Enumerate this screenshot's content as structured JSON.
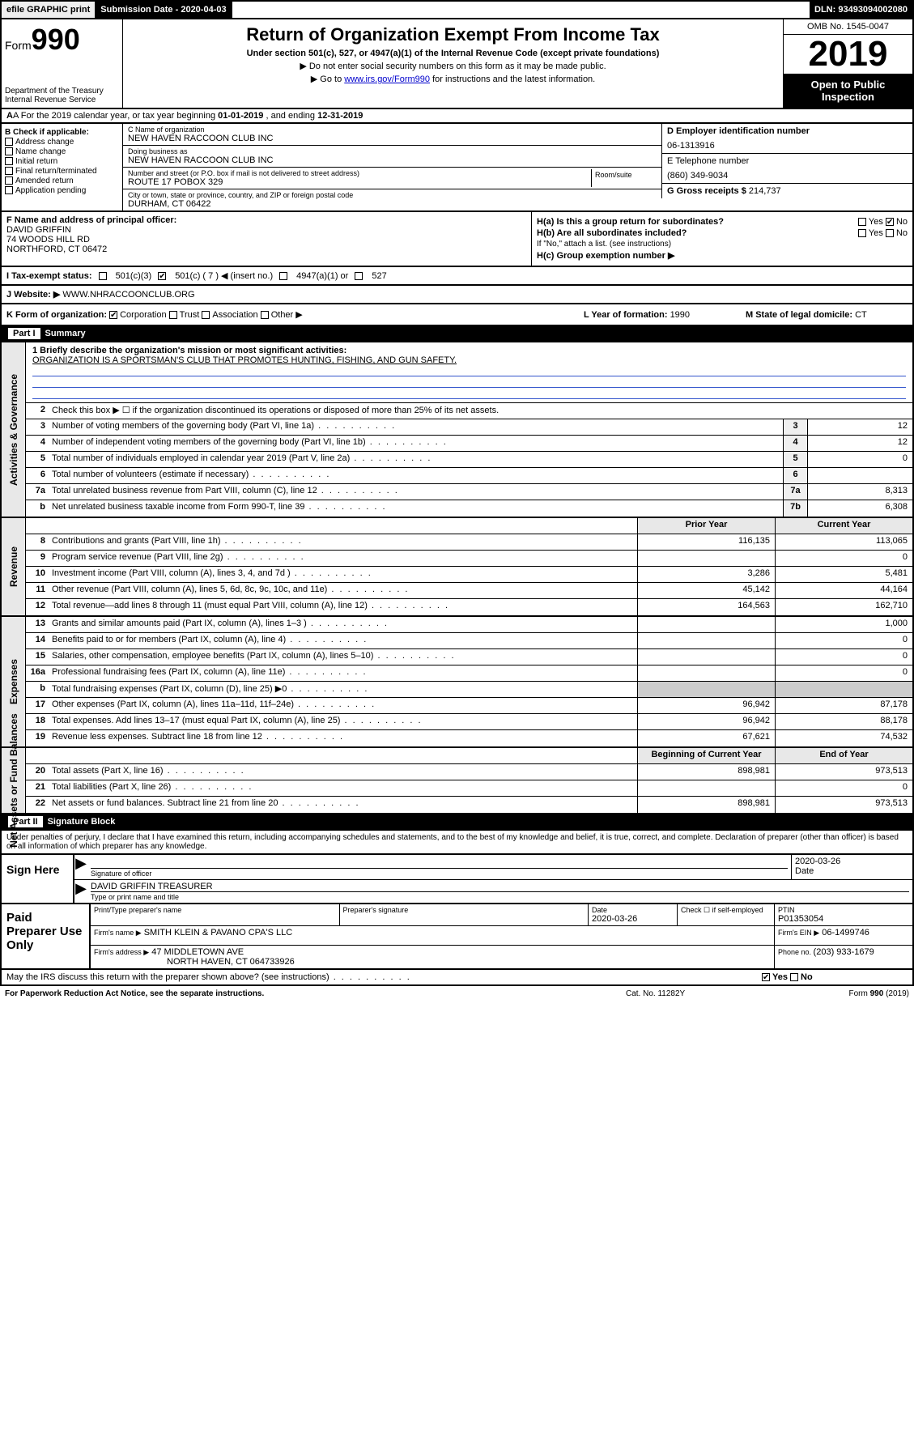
{
  "topbar": {
    "efile": "efile GRAPHIC print",
    "subdate_lbl": "Submission Date - ",
    "subdate": "2020-04-03",
    "dln": "DLN: 93493094002080"
  },
  "header": {
    "form_lbl": "Form",
    "form_num": "990",
    "dept": "Department of the Treasury\nInternal Revenue Service",
    "title": "Return of Organization Exempt From Income Tax",
    "subtitle": "Under section 501(c), 527, or 4947(a)(1) of the Internal Revenue Code (except private foundations)",
    "note1": "▶ Do not enter social security numbers on this form as it may be made public.",
    "note2_pre": "▶ Go to ",
    "note2_link": "www.irs.gov/Form990",
    "note2_post": " for instructions and the latest information.",
    "omb": "OMB No. 1545-0047",
    "year": "2019",
    "open": "Open to Public Inspection"
  },
  "rowA": {
    "text_pre": "A  For the 2019 calendar year, or tax year beginning ",
    "begin": "01-01-2019",
    "mid": "  , and ending ",
    "end": "12-31-2019"
  },
  "colB": {
    "hdr": "B Check if applicable:",
    "items": [
      "Address change",
      "Name change",
      "Initial return",
      "Final return/terminated",
      "Amended return",
      "Application pending"
    ]
  },
  "c": {
    "name_lbl": "C Name of organization",
    "name": "NEW HAVEN RACCOON CLUB INC",
    "dba_lbl": "Doing business as",
    "dba": "NEW HAVEN RACCOON CLUB INC",
    "street_lbl": "Number and street (or P.O. box if mail is not delivered to street address)",
    "street": "ROUTE 17 POBOX 329",
    "room_lbl": "Room/suite",
    "city_lbl": "City or town, state or province, country, and ZIP or foreign postal code",
    "city": "DURHAM, CT  06422"
  },
  "right": {
    "d_lbl": "D Employer identification number",
    "d": "06-1313916",
    "e_lbl": "E Telephone number",
    "e": "(860) 349-9034",
    "g_lbl": "G Gross receipts $ ",
    "g": "214,737"
  },
  "f": {
    "lbl": "F  Name and address of principal officer:",
    "name": "DAVID GRIFFIN",
    "addr1": "74 WOODS HILL RD",
    "addr2": "NORTHFORD, CT  06472"
  },
  "h": {
    "a_lbl": "H(a)  Is this a group return for subordinates?",
    "a_yes": "Yes",
    "a_no": "No",
    "b_lbl": "H(b)  Are all subordinates included?",
    "b_yes": "Yes",
    "b_no": "No",
    "note": "If \"No,\" attach a list. (see instructions)",
    "c_lbl": "H(c)  Group exemption number ▶"
  },
  "i": {
    "lbl": "I  Tax-exempt status:",
    "o501c3": "501(c)(3)",
    "o501c": "501(c) ( 7 ) ◀ (insert no.)",
    "o4947": "4947(a)(1) or",
    "o527": "527"
  },
  "j": {
    "lbl": "J  Website: ▶",
    "val": "WWW.NHRACCOONCLUB.ORG"
  },
  "k": {
    "lbl": "K Form of organization:",
    "corp": "Corporation",
    "trust": "Trust",
    "assoc": "Association",
    "other": "Other ▶"
  },
  "l": {
    "lbl": "L Year of formation: ",
    "val": "1990"
  },
  "m": {
    "lbl": "M State of legal domicile: ",
    "val": "CT"
  },
  "partI": {
    "num": "Part I",
    "title": "Summary"
  },
  "summary": {
    "tabs": [
      "Activities & Governance",
      "Revenue",
      "Expenses",
      "Net Assets or Fund Balances"
    ],
    "l1_lbl": "1  Briefly describe the organization's mission or most significant activities:",
    "l1_val": "ORGANIZATION IS A SPORTSMAN'S CLUB THAT PROMOTES HUNTING, FISHING, AND GUN SAFETY.",
    "l2": "Check this box ▶ ☐  if the organization discontinued its operations or disposed of more than 25% of its net assets.",
    "lines_top": [
      {
        "n": "3",
        "t": "Number of voting members of the governing body (Part VI, line 1a)",
        "b": "3",
        "v": "12"
      },
      {
        "n": "4",
        "t": "Number of independent voting members of the governing body (Part VI, line 1b)",
        "b": "4",
        "v": "12"
      },
      {
        "n": "5",
        "t": "Total number of individuals employed in calendar year 2019 (Part V, line 2a)",
        "b": "5",
        "v": "0"
      },
      {
        "n": "6",
        "t": "Total number of volunteers (estimate if necessary)",
        "b": "6",
        "v": ""
      },
      {
        "n": "7a",
        "t": "Total unrelated business revenue from Part VIII, column (C), line 12",
        "b": "7a",
        "v": "8,313"
      },
      {
        "n": "b",
        "t": "Net unrelated business taxable income from Form 990-T, line 39",
        "b": "7b",
        "v": "6,308"
      }
    ],
    "hdr_prior": "Prior Year",
    "hdr_curr": "Current Year",
    "rev": [
      {
        "n": "8",
        "t": "Contributions and grants (Part VIII, line 1h)",
        "p": "116,135",
        "c": "113,065"
      },
      {
        "n": "9",
        "t": "Program service revenue (Part VIII, line 2g)",
        "p": "",
        "c": "0"
      },
      {
        "n": "10",
        "t": "Investment income (Part VIII, column (A), lines 3, 4, and 7d )",
        "p": "3,286",
        "c": "5,481"
      },
      {
        "n": "11",
        "t": "Other revenue (Part VIII, column (A), lines 5, 6d, 8c, 9c, 10c, and 11e)",
        "p": "45,142",
        "c": "44,164"
      },
      {
        "n": "12",
        "t": "Total revenue—add lines 8 through 11 (must equal Part VIII, column (A), line 12)",
        "p": "164,563",
        "c": "162,710"
      }
    ],
    "exp": [
      {
        "n": "13",
        "t": "Grants and similar amounts paid (Part IX, column (A), lines 1–3 )",
        "p": "",
        "c": "1,000"
      },
      {
        "n": "14",
        "t": "Benefits paid to or for members (Part IX, column (A), line 4)",
        "p": "",
        "c": "0"
      },
      {
        "n": "15",
        "t": "Salaries, other compensation, employee benefits (Part IX, column (A), lines 5–10)",
        "p": "",
        "c": "0"
      },
      {
        "n": "16a",
        "t": "Professional fundraising fees (Part IX, column (A), line 11e)",
        "p": "",
        "c": "0"
      },
      {
        "n": "b",
        "t": "Total fundraising expenses (Part IX, column (D), line 25) ▶0",
        "p": "shade",
        "c": "shade"
      },
      {
        "n": "17",
        "t": "Other expenses (Part IX, column (A), lines 11a–11d, 11f–24e)",
        "p": "96,942",
        "c": "87,178"
      },
      {
        "n": "18",
        "t": "Total expenses. Add lines 13–17 (must equal Part IX, column (A), line 25)",
        "p": "96,942",
        "c": "88,178"
      },
      {
        "n": "19",
        "t": "Revenue less expenses. Subtract line 18 from line 12",
        "p": "67,621",
        "c": "74,532"
      }
    ],
    "hdr_beg": "Beginning of Current Year",
    "hdr_end": "End of Year",
    "net": [
      {
        "n": "20",
        "t": "Total assets (Part X, line 16)",
        "p": "898,981",
        "c": "973,513"
      },
      {
        "n": "21",
        "t": "Total liabilities (Part X, line 26)",
        "p": "",
        "c": "0"
      },
      {
        "n": "22",
        "t": "Net assets or fund balances. Subtract line 21 from line 20",
        "p": "898,981",
        "c": "973,513"
      }
    ]
  },
  "partII": {
    "num": "Part II",
    "title": "Signature Block"
  },
  "penalty": "Under penalties of perjury, I declare that I have examined this return, including accompanying schedules and statements, and to the best of my knowledge and belief, it is true, correct, and complete. Declaration of preparer (other than officer) is based on all information of which preparer has any knowledge.",
  "sign": {
    "lbl": "Sign Here",
    "sig_lbl": "Signature of officer",
    "date": "2020-03-26",
    "date_lbl": "Date",
    "name": "DAVID GRIFFIN TREASURER",
    "name_lbl": "Type or print name and title"
  },
  "paid": {
    "lbl": "Paid Preparer Use Only",
    "h_prep": "Print/Type preparer's name",
    "h_sig": "Preparer's signature",
    "h_date": "Date",
    "date": "2020-03-26",
    "h_chk": "Check ☐ if self-employed",
    "h_ptin": "PTIN",
    "ptin": "P01353054",
    "firm_lbl": "Firm's name    ▶",
    "firm": "SMITH KLEIN & PAVANO CPA'S LLC",
    "ein_lbl": "Firm's EIN ▶",
    "ein": "06-1499746",
    "addr_lbl": "Firm's address ▶",
    "addr1": "47 MIDDLETOWN AVE",
    "addr2": "NORTH HAVEN, CT  064733926",
    "phone_lbl": "Phone no. ",
    "phone": "(203) 933-1679"
  },
  "discuss": {
    "q": "May the IRS discuss this return with the preparer shown above? (see instructions)",
    "yes": "Yes",
    "no": "No"
  },
  "footer": {
    "l": "For Paperwork Reduction Act Notice, see the separate instructions.",
    "m": "Cat. No. 11282Y",
    "r": "Form 990 (2019)"
  },
  "colors": {
    "link": "#0000cc",
    "shade": "#cccccc",
    "tab_bg": "#e8e8e8"
  }
}
